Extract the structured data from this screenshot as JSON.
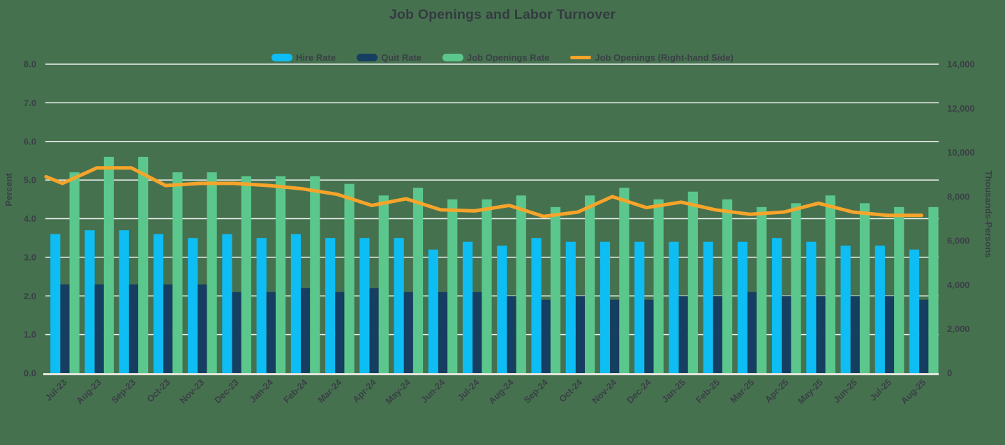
{
  "title": "Job Openings and Labor Turnover",
  "colors": {
    "background": "#46714F",
    "text": "#3A4046",
    "hire": "#0DBDF4",
    "quit": "#163E60",
    "openings_rate": "#5BC78D",
    "openings_line": "#F7A42B",
    "gridline": "#FFFFFF",
    "baseline": "#E4E5DD"
  },
  "legend": [
    {
      "label": "Hire Rate",
      "color_key": "hire",
      "type": "bar"
    },
    {
      "label": "Quit Rate",
      "color_key": "quit",
      "type": "bar"
    },
    {
      "label": "Job Openings Rate",
      "color_key": "openings_rate",
      "type": "bar"
    },
    {
      "label": "Job Openings (Right-hand Side)",
      "color_key": "openings_line",
      "type": "line"
    }
  ],
  "left_axis": {
    "title": "Percent",
    "min": 0,
    "max": 8,
    "tick_labels": [
      "0.0",
      "1.0",
      "2.0",
      "3.0",
      "4.0",
      "5.0",
      "6.0",
      "7.0",
      "8.0"
    ]
  },
  "right_axis": {
    "title": "Thousands-Persons",
    "min": 0,
    "max": 14000,
    "tick_step": 2000,
    "tick_labels": [
      "0",
      "2,000",
      "4,000",
      "6,000",
      "8,000",
      "10,000",
      "12,000",
      "14,000"
    ]
  },
  "chart_data": {
    "type": "bar+line",
    "grid": "horizontal-white",
    "legend_position": "top",
    "ylim_left": [
      0,
      8
    ],
    "ylim_right": [
      0,
      14000
    ],
    "categories": [
      "Jul-23",
      "Aug-23",
      "Sep-23",
      "Oct-23",
      "Nov-23",
      "Dec-23",
      "Jan-24",
      "Feb-24",
      "Mar-24",
      "Apr-24",
      "May-24",
      "Jun-24",
      "Jul-24",
      "Aug-24",
      "Sep-24",
      "Oct-24",
      "Nov-24",
      "Dec-24",
      "Jan-25",
      "Feb-25",
      "Mar-25",
      "Apr-25",
      "May-25",
      "Jun-25",
      "Jul-25",
      "Aug-25"
    ],
    "series": [
      {
        "name": "Hire Rate",
        "type": "bar",
        "axis": "left",
        "color_key": "hire",
        "values": [
          3.6,
          3.7,
          3.7,
          3.6,
          3.5,
          3.6,
          3.5,
          3.6,
          3.5,
          3.5,
          3.5,
          3.2,
          3.4,
          3.3,
          3.5,
          3.4,
          3.4,
          3.4,
          3.4,
          3.4,
          3.4,
          3.5,
          3.4,
          3.3,
          3.3,
          3.2
        ]
      },
      {
        "name": "Quit Rate",
        "type": "bar",
        "axis": "left",
        "color_key": "quit",
        "values": [
          2.3,
          2.3,
          2.3,
          2.3,
          2.3,
          2.1,
          2.1,
          2.2,
          2.1,
          2.2,
          2.1,
          2.1,
          2.1,
          2.0,
          1.9,
          2.0,
          1.9,
          1.9,
          2.0,
          2.0,
          2.1,
          2.0,
          2.0,
          2.0,
          2.0,
          1.9
        ]
      },
      {
        "name": "Job Openings Rate",
        "type": "bar",
        "axis": "left",
        "color_key": "openings_rate",
        "values": [
          5.2,
          5.6,
          5.6,
          5.2,
          5.2,
          5.1,
          5.1,
          5.1,
          4.9,
          4.6,
          4.8,
          4.5,
          4.5,
          4.6,
          4.3,
          4.6,
          4.8,
          4.5,
          4.7,
          4.5,
          4.3,
          4.4,
          4.6,
          4.4,
          4.3,
          4.3
        ]
      },
      {
        "name": "Job Openings (Right-hand Side)",
        "type": "line",
        "axis": "right",
        "color_key": "openings_line",
        "left_edge_value": 8900,
        "values": [
          8600,
          9300,
          9300,
          8500,
          8600,
          8600,
          8500,
          8350,
          8100,
          7600,
          7900,
          7400,
          7350,
          7600,
          7100,
          7300,
          8000,
          7500,
          7750,
          7400,
          7200,
          7300,
          7700,
          7300,
          7150,
          7150
        ]
      }
    ]
  }
}
